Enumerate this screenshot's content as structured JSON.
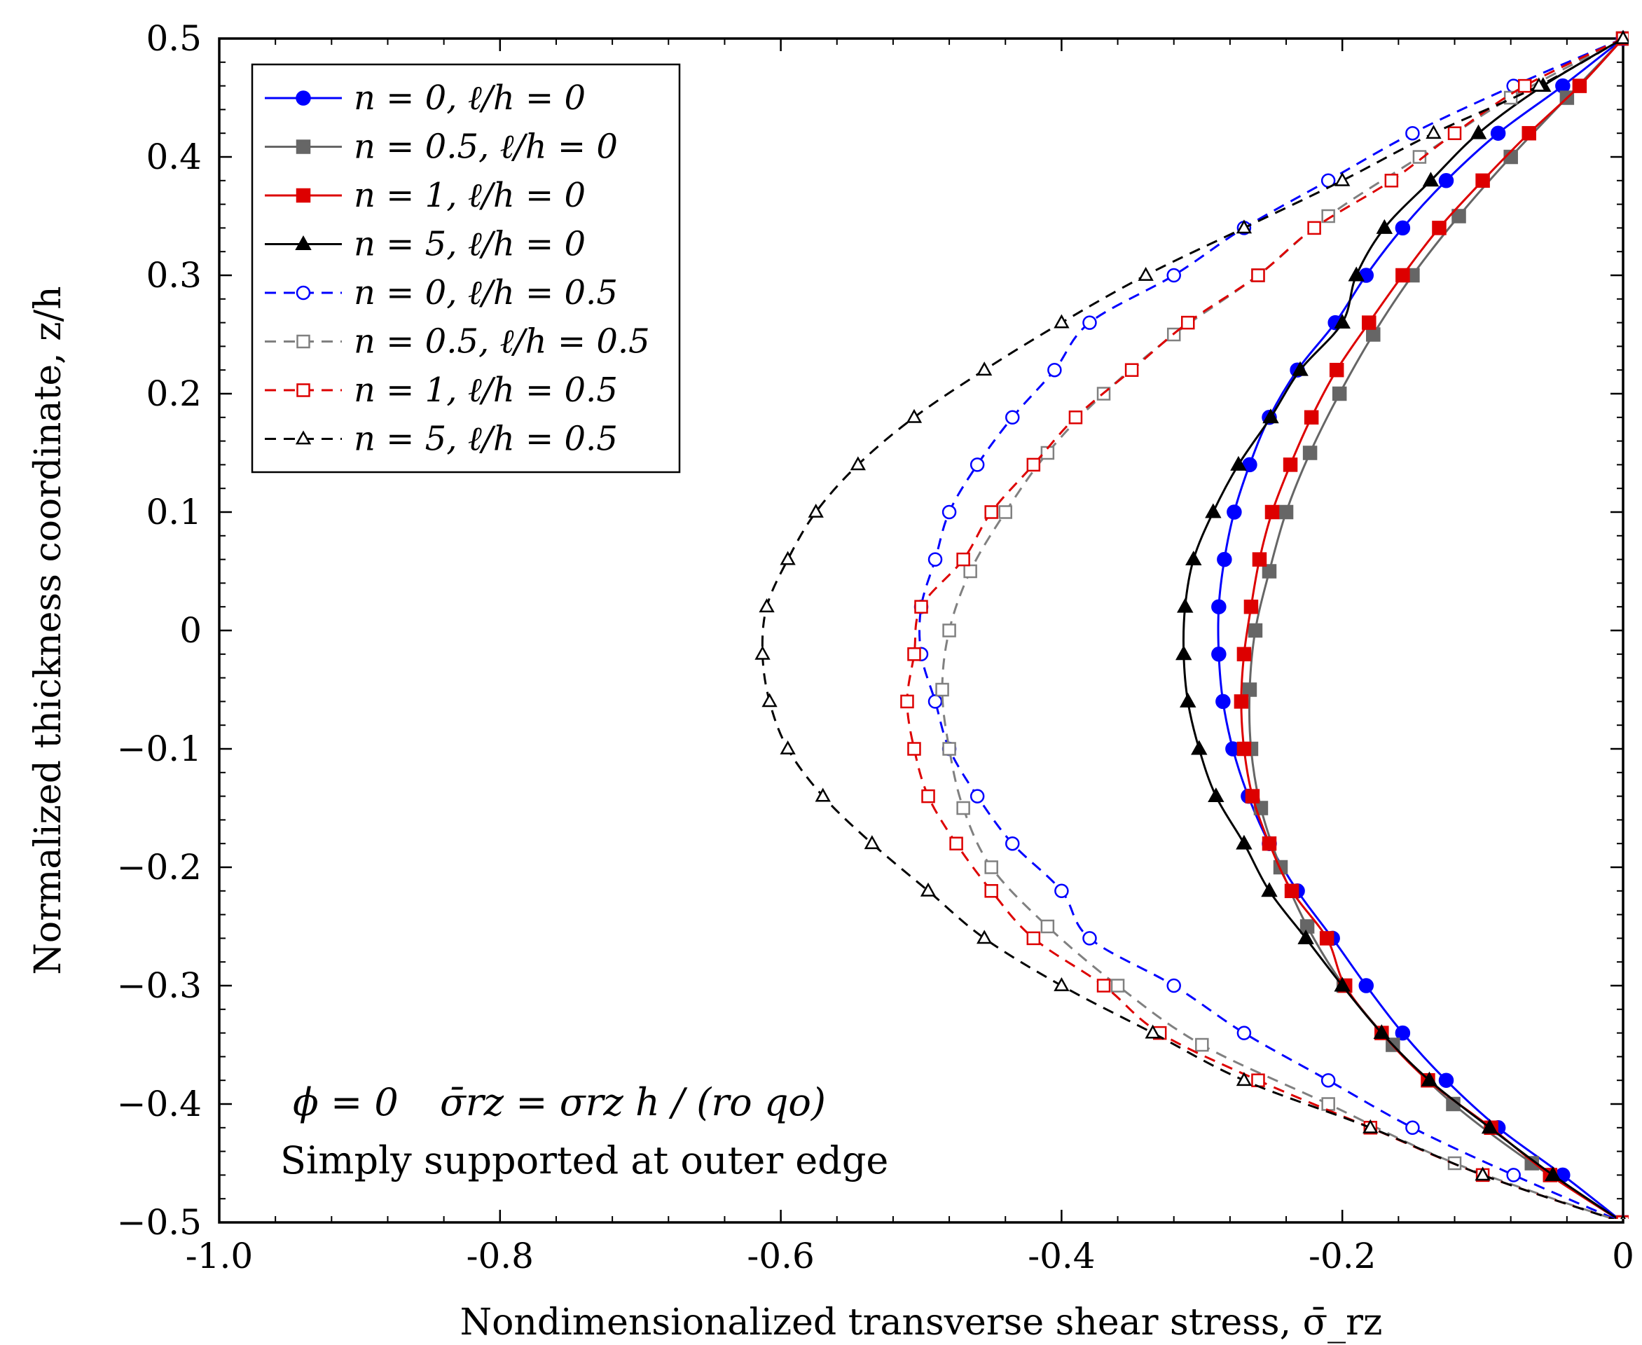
{
  "chart_data": {
    "type": "line",
    "xlabel": "Nondimensionalized transverse shear stress, σ̄_rz",
    "ylabel": "Normalized thickness coordinate, z/h",
    "xlim": [
      -1.0,
      0.0
    ],
    "ylim": [
      -0.5,
      0.5
    ],
    "x_ticks": [
      -1.0,
      -0.8,
      -0.6,
      -0.4,
      -0.2,
      0
    ],
    "x_tick_labels": [
      "-1.0",
      "-0.8",
      "-0.6",
      "-0.4",
      "-0.2",
      "0"
    ],
    "y_ticks": [
      -0.5,
      -0.4,
      -0.3,
      -0.2,
      -0.1,
      0,
      0.1,
      0.2,
      0.3,
      0.4,
      0.5
    ],
    "y_tick_labels": [
      "−0.5",
      "−0.4",
      "−0.3",
      "−0.2",
      "−0.1",
      "0",
      "0.1",
      "0.2",
      "0.3",
      "0.4",
      "0.5"
    ],
    "legend_position": "top-left",
    "annotations": {
      "phi": "ϕ = 0",
      "sigma_def": "σ̄rz = σrz h / (ro qo)",
      "boundary": "Simply supported at outer edge"
    },
    "series": [
      {
        "name": "n = 0,    ℓ/h = 0",
        "color": "#0000ff",
        "dash": "solid",
        "marker": "circle-filled",
        "z": [
          0.5,
          0.46,
          0.42,
          0.38,
          0.34,
          0.3,
          0.26,
          0.22,
          0.18,
          0.14,
          0.1,
          0.06,
          0.02,
          -0.02,
          -0.06,
          -0.1,
          -0.14,
          -0.18,
          -0.22,
          -0.26,
          -0.3,
          -0.34,
          -0.38,
          -0.42,
          -0.46,
          -0.5
        ],
        "x": [
          0,
          -0.043,
          -0.089,
          -0.126,
          -0.157,
          -0.183,
          -0.205,
          -0.232,
          -0.252,
          -0.266,
          -0.277,
          -0.284,
          -0.288,
          -0.288,
          -0.285,
          -0.278,
          -0.267,
          -0.252,
          -0.232,
          -0.207,
          -0.183,
          -0.157,
          -0.126,
          -0.089,
          -0.043,
          0
        ]
      },
      {
        "name": "n = 0.5, ℓ/h = 0",
        "color": "#666666",
        "dash": "solid",
        "marker": "square-filled",
        "z": [
          0.5,
          0.45,
          0.4,
          0.35,
          0.3,
          0.25,
          0.2,
          0.15,
          0.1,
          0.05,
          0.0,
          -0.05,
          -0.1,
          -0.15,
          -0.2,
          -0.25,
          -0.3,
          -0.35,
          -0.4,
          -0.45,
          -0.5
        ],
        "x": [
          0,
          -0.04,
          -0.08,
          -0.117,
          -0.15,
          -0.178,
          -0.202,
          -0.223,
          -0.24,
          -0.252,
          -0.262,
          -0.266,
          -0.265,
          -0.258,
          -0.244,
          -0.225,
          -0.199,
          -0.164,
          -0.121,
          -0.065,
          0
        ]
      },
      {
        "name": "n = 1,    ℓ/h = 0",
        "color": "#dd0000",
        "dash": "solid",
        "marker": "square-filled",
        "z": [
          0.5,
          0.46,
          0.42,
          0.38,
          0.34,
          0.3,
          0.26,
          0.22,
          0.18,
          0.14,
          0.1,
          0.06,
          0.02,
          -0.02,
          -0.06,
          -0.1,
          -0.14,
          -0.18,
          -0.22,
          -0.26,
          -0.3,
          -0.34,
          -0.38,
          -0.42,
          -0.46,
          -0.5
        ],
        "x": [
          0,
          -0.031,
          -0.067,
          -0.1,
          -0.131,
          -0.157,
          -0.181,
          -0.204,
          -0.222,
          -0.237,
          -0.25,
          -0.259,
          -0.265,
          -0.27,
          -0.272,
          -0.27,
          -0.264,
          -0.252,
          -0.236,
          -0.211,
          -0.198,
          -0.172,
          -0.139,
          -0.094,
          -0.052,
          0
        ]
      },
      {
        "name": "n = 5,    ℓ/h = 0",
        "color": "#000000",
        "dash": "solid",
        "marker": "triangle-filled",
        "z": [
          0.5,
          0.46,
          0.42,
          0.38,
          0.34,
          0.3,
          0.26,
          0.22,
          0.18,
          0.14,
          0.1,
          0.06,
          0.02,
          -0.02,
          -0.06,
          -0.1,
          -0.14,
          -0.18,
          -0.22,
          -0.26,
          -0.3,
          -0.34,
          -0.38,
          -0.42,
          -0.46,
          -0.5
        ],
        "x": [
          0,
          -0.057,
          -0.103,
          -0.137,
          -0.17,
          -0.19,
          -0.2,
          -0.23,
          -0.251,
          -0.274,
          -0.292,
          -0.306,
          -0.312,
          -0.313,
          -0.31,
          -0.302,
          -0.29,
          -0.27,
          -0.252,
          -0.226,
          -0.2,
          -0.172,
          -0.138,
          -0.095,
          -0.05,
          0
        ]
      },
      {
        "name": "n = 0,    ℓ/h = 0.5",
        "color": "#0000ff",
        "dash": "dashed",
        "marker": "circle-open",
        "z": [
          0.5,
          0.46,
          0.42,
          0.38,
          0.34,
          0.3,
          0.26,
          0.22,
          0.18,
          0.14,
          0.1,
          0.06,
          0.02,
          -0.02,
          -0.06,
          -0.1,
          -0.14,
          -0.18,
          -0.22,
          -0.26,
          -0.3,
          -0.34,
          -0.38,
          -0.42,
          -0.46,
          -0.5
        ],
        "x": [
          0,
          -0.078,
          -0.15,
          -0.21,
          -0.27,
          -0.32,
          -0.38,
          -0.405,
          -0.435,
          -0.46,
          -0.48,
          -0.49,
          -0.5,
          -0.5,
          -0.49,
          -0.48,
          -0.46,
          -0.435,
          -0.4,
          -0.38,
          -0.32,
          -0.27,
          -0.21,
          -0.15,
          -0.078,
          0
        ]
      },
      {
        "name": "n = 0.5, ℓ/h = 0.5",
        "color": "#808080",
        "dash": "dashed",
        "marker": "square-open",
        "z": [
          0.5,
          0.45,
          0.4,
          0.35,
          0.3,
          0.25,
          0.2,
          0.15,
          0.1,
          0.05,
          0.0,
          -0.05,
          -0.1,
          -0.15,
          -0.2,
          -0.25,
          -0.3,
          -0.35,
          -0.4,
          -0.45,
          -0.5
        ],
        "x": [
          0,
          -0.08,
          -0.145,
          -0.21,
          -0.26,
          -0.32,
          -0.37,
          -0.41,
          -0.44,
          -0.465,
          -0.48,
          -0.485,
          -0.48,
          -0.47,
          -0.45,
          -0.41,
          -0.36,
          -0.3,
          -0.21,
          -0.12,
          0
        ]
      },
      {
        "name": "n = 1,    ℓ/h = 0.5",
        "color": "#dd0000",
        "dash": "dashed",
        "marker": "square-open",
        "z": [
          0.5,
          0.46,
          0.42,
          0.38,
          0.34,
          0.3,
          0.26,
          0.22,
          0.18,
          0.14,
          0.1,
          0.06,
          0.02,
          -0.02,
          -0.06,
          -0.1,
          -0.14,
          -0.18,
          -0.22,
          -0.26,
          -0.3,
          -0.34,
          -0.38,
          -0.42,
          -0.46,
          -0.5
        ],
        "x": [
          0,
          -0.07,
          -0.12,
          -0.165,
          -0.22,
          -0.26,
          -0.31,
          -0.35,
          -0.39,
          -0.42,
          -0.45,
          -0.47,
          -0.5,
          -0.505,
          -0.51,
          -0.505,
          -0.495,
          -0.475,
          -0.45,
          -0.42,
          -0.37,
          -0.33,
          -0.26,
          -0.18,
          -0.1,
          0
        ]
      },
      {
        "name": "n = 5,    ℓ/h = 0.5",
        "color": "#000000",
        "dash": "dashed",
        "marker": "triangle-open",
        "z": [
          0.5,
          0.46,
          0.42,
          0.38,
          0.34,
          0.3,
          0.26,
          0.22,
          0.18,
          0.14,
          0.1,
          0.06,
          0.02,
          -0.02,
          -0.06,
          -0.1,
          -0.14,
          -0.18,
          -0.22,
          -0.26,
          -0.3,
          -0.34,
          -0.38,
          -0.42,
          -0.46,
          -0.5
        ],
        "x": [
          0,
          -0.06,
          -0.135,
          -0.2,
          -0.27,
          -0.34,
          -0.4,
          -0.455,
          -0.505,
          -0.545,
          -0.575,
          -0.595,
          -0.61,
          -0.613,
          -0.608,
          -0.595,
          -0.57,
          -0.535,
          -0.495,
          -0.455,
          -0.4,
          -0.335,
          -0.27,
          -0.18,
          -0.1,
          0
        ]
      }
    ]
  }
}
